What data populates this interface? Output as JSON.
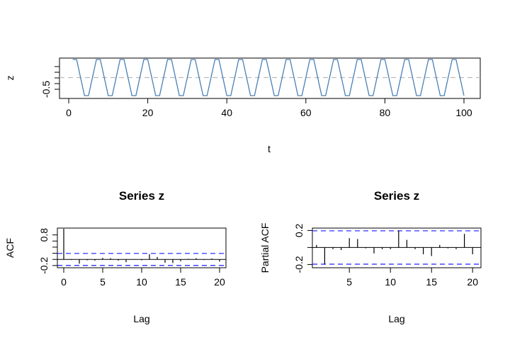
{
  "chart_data": [
    {
      "type": "line",
      "title": "",
      "xlabel": "t",
      "ylabel": "z",
      "xlim": [
        0,
        100
      ],
      "ylim": [
        -0.75,
        0.75
      ],
      "xticks": [
        "0",
        "20",
        "40",
        "60",
        "80",
        "100"
      ],
      "xtick_values": [
        0,
        20,
        40,
        60,
        80,
        100
      ],
      "yticks": [
        "-0.5",
        "",
        "",
        "",
        ""
      ],
      "ytick_values": [
        -0.5,
        -0.25,
        0,
        0.25,
        0.5
      ],
      "reference_line": {
        "y": 0,
        "style": "dashed",
        "color": "#bbbbbb"
      },
      "line_color": "#4a7fb5",
      "series": [
        {
          "x": [
            1,
            2,
            3,
            4,
            5,
            6,
            7,
            8,
            9,
            10,
            11,
            12,
            13,
            14,
            15,
            16,
            17,
            18,
            19,
            20,
            21,
            22,
            23,
            24,
            25,
            26,
            27,
            28,
            29,
            30,
            31,
            32,
            33,
            34,
            35,
            36,
            37,
            38,
            39,
            40,
            41,
            42,
            43,
            44,
            45,
            46,
            47,
            48,
            49,
            50,
            51,
            52,
            53,
            54,
            55,
            56,
            57,
            58,
            59,
            60,
            61,
            62,
            63,
            64,
            65,
            66,
            67,
            68,
            69,
            70,
            71,
            72,
            73,
            74,
            75,
            76,
            77,
            78,
            79,
            80,
            81,
            82,
            83,
            84,
            85,
            86,
            87,
            88,
            89,
            90,
            91,
            92,
            93,
            94,
            95,
            96,
            97,
            98,
            99,
            100
          ],
          "values": [
            0.5,
            0.5,
            0,
            -0.5,
            -0.5,
            0,
            0.5,
            0.5,
            0,
            -0.5,
            -0.5,
            0,
            0.5,
            0.5,
            0,
            -0.5,
            -0.5,
            0,
            0.5,
            0.5,
            0,
            -0.5,
            -0.5,
            0,
            0.5,
            0.5,
            0,
            -0.5,
            -0.5,
            0,
            0.5,
            0.5,
            0,
            -0.5,
            -0.5,
            0,
            0.5,
            0.5,
            0,
            -0.5,
            -0.5,
            0,
            0.5,
            0.5,
            0,
            -0.5,
            -0.5,
            0,
            0.5,
            0.5,
            0,
            -0.5,
            -0.5,
            0,
            0.5,
            0.5,
            0,
            -0.5,
            -0.5,
            0,
            0.5,
            0.5,
            0,
            -0.5,
            -0.5,
            0,
            0.5,
            0.5,
            0,
            -0.5,
            -0.5,
            0,
            0.5,
            0.5,
            0,
            -0.5,
            -0.5,
            0,
            0.5,
            0.5,
            0,
            -0.5,
            -0.5,
            0,
            0.5,
            0.5,
            0,
            -0.5,
            -0.5,
            0,
            0.5,
            0.5,
            0,
            -0.5,
            -0.5,
            0,
            0.5,
            0.5,
            0,
            -0.5
          ]
        }
      ]
    },
    {
      "type": "bar",
      "title": "Series  z",
      "xlabel": "Lag",
      "ylabel": "ACF",
      "xlim": [
        0,
        20
      ],
      "ylim": [
        -0.25,
        1.0
      ],
      "xticks": [
        "0",
        "5",
        "10",
        "15",
        "20"
      ],
      "xtick_values": [
        0,
        5,
        10,
        15,
        20
      ],
      "yticks": [
        "-0.2",
        "",
        "",
        "",
        "",
        "0.8"
      ],
      "ytick_values": [
        -0.2,
        0,
        0.2,
        0.4,
        0.6,
        0.8
      ],
      "extra_ytick_label": {
        "value": 0.8,
        "text": "0.8"
      },
      "confidence_band": {
        "upper": 0.196,
        "lower": -0.196,
        "color": "#3333ff",
        "style": "dashed"
      },
      "lags": [
        0,
        1,
        2,
        3,
        4,
        5,
        6,
        7,
        8,
        9,
        10,
        11,
        12,
        13,
        14,
        15,
        16,
        17,
        18,
        19,
        20
      ],
      "values": [
        1.0,
        -0.02,
        -0.14,
        -0.03,
        -0.04,
        0.05,
        0.04,
        -0.04,
        -0.09,
        0.01,
        -0.03,
        0.17,
        0.08,
        -0.11,
        -0.12,
        -0.06,
        0.02,
        0.04,
        -0.02,
        0.03,
        -0.07
      ]
    },
    {
      "type": "bar",
      "title": "Series  z",
      "xlabel": "Lag",
      "ylabel": "Partial ACF",
      "xlim": [
        0.5,
        20.5
      ],
      "ylim": [
        -0.23,
        0.22
      ],
      "xticks": [
        "5",
        "10",
        "15",
        "20"
      ],
      "xtick_values": [
        5,
        10,
        15,
        20
      ],
      "yticks": [
        "-0.2",
        "",
        "0.2"
      ],
      "ytick_values": [
        -0.2,
        0,
        0.2
      ],
      "confidence_band": {
        "upper": 0.196,
        "lower": -0.196,
        "color": "#3333ff",
        "style": "dashed"
      },
      "lags": [
        1,
        2,
        3,
        4,
        5,
        6,
        7,
        8,
        9,
        10,
        11,
        12,
        13,
        14,
        15,
        16,
        17,
        18,
        19,
        20
      ],
      "values": [
        0.03,
        -0.2,
        -0.02,
        -0.03,
        0.11,
        0.1,
        -0.01,
        -0.07,
        -0.02,
        -0.02,
        0.2,
        0.09,
        -0.02,
        -0.08,
        -0.1,
        0.03,
        -0.01,
        -0.02,
        0.16,
        -0.08
      ]
    }
  ]
}
